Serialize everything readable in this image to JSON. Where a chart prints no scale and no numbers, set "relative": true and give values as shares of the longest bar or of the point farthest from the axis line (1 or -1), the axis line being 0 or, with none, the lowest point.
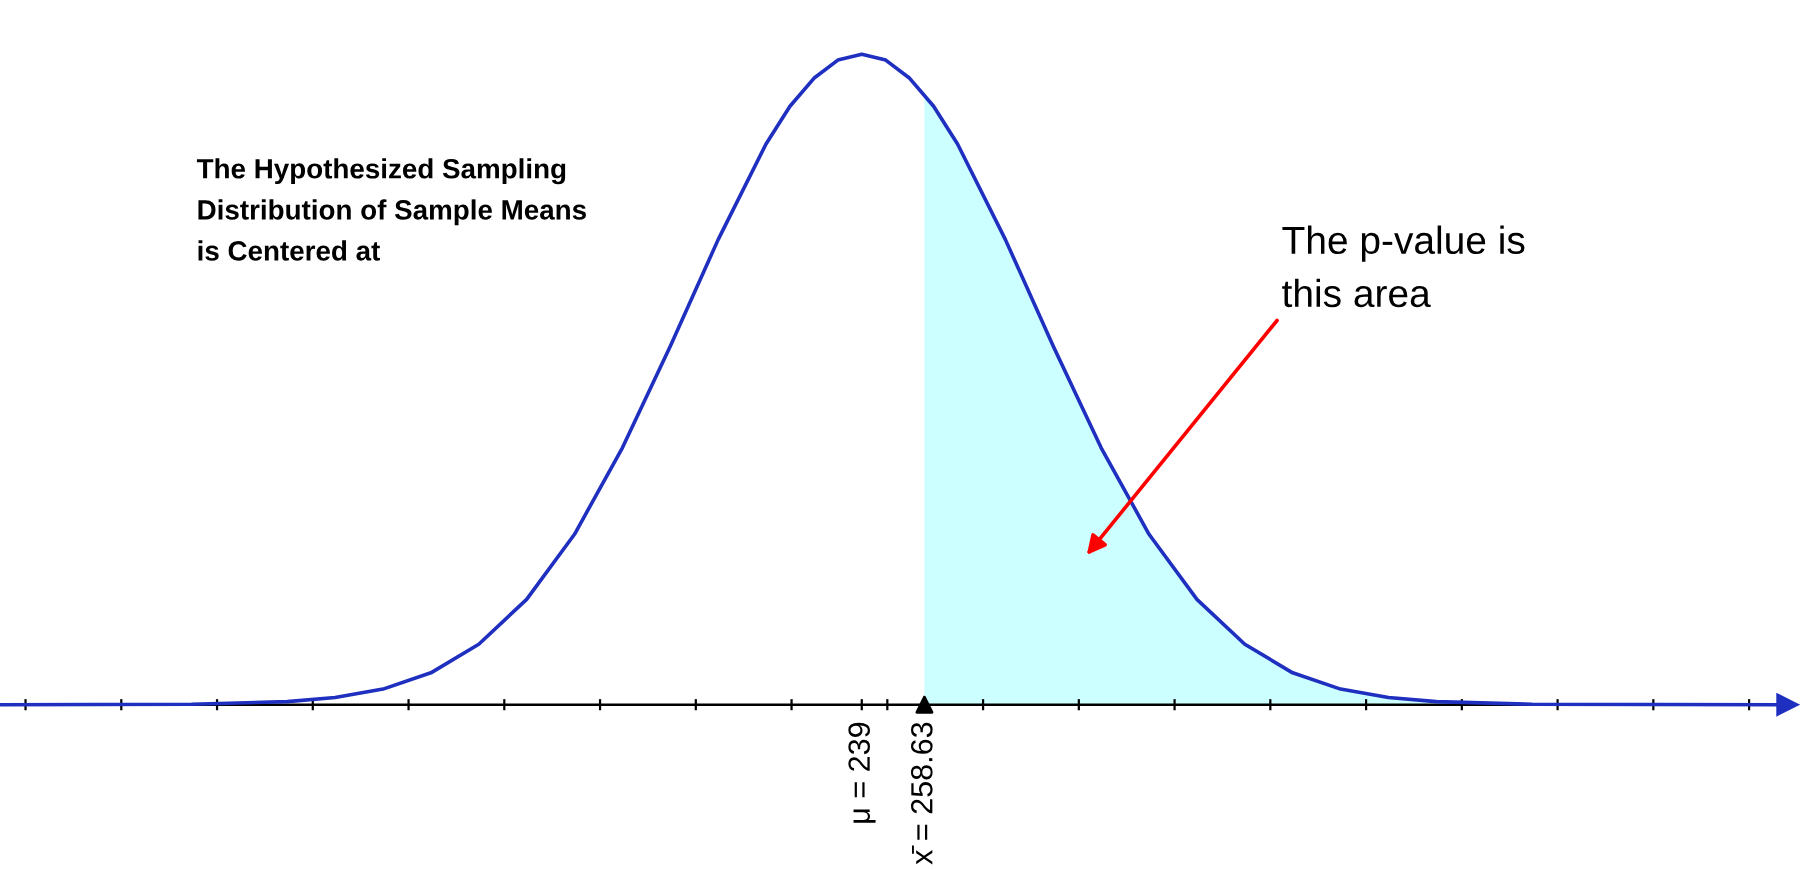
{
  "chart_data": {
    "type": "line",
    "relative": true,
    "legend": false,
    "grid": false,
    "marker": "none",
    "line_style": "solid",
    "xlim": [
      -31,
      529
    ],
    "xticks": [
      {
        "value": -23,
        "label": null
      },
      {
        "value": 7,
        "label": null
      },
      {
        "value": 37,
        "label": null
      },
      {
        "value": 67,
        "label": null
      },
      {
        "value": 97,
        "label": null
      },
      {
        "value": 127,
        "label": null
      },
      {
        "value": 157,
        "label": null
      },
      {
        "value": 187,
        "label": null
      },
      {
        "value": 217,
        "label": null
      },
      {
        "value": 239,
        "label": "μ = 239"
      },
      {
        "value": 247,
        "label": null
      },
      {
        "value": 258.63,
        "label": "x̄ = 258.63"
      },
      {
        "value": 277,
        "label": null
      },
      {
        "value": 307,
        "label": null
      },
      {
        "value": 337,
        "label": null
      },
      {
        "value": 367,
        "label": null
      },
      {
        "value": 397,
        "label": null
      },
      {
        "value": 427,
        "label": null
      },
      {
        "value": 457,
        "label": null
      },
      {
        "value": 487,
        "label": null
      },
      {
        "value": 517,
        "label": null
      }
    ],
    "series": [
      {
        "type": "area",
        "color": "#ccffff",
        "x": [
          258.63,
          269,
          284,
          299,
          314,
          329,
          344,
          359,
          374,
          389,
          404,
          419,
          449,
          529
        ],
        "values": [
          0.938,
          0.862,
          0.715,
          0.551,
          0.395,
          0.262,
          0.162,
          0.093,
          0.049,
          0.024,
          0.011,
          0.0047,
          0.0007,
          0
        ]
      },
      {
        "color": "#1f2fbf",
        "x": [
          -31,
          29,
          59,
          74,
          89,
          104,
          119,
          134,
          149,
          164,
          179,
          194,
          209,
          216.5,
          224,
          231.5,
          239,
          246.5,
          254,
          261.5,
          269,
          284,
          299,
          314,
          329,
          344,
          359,
          374,
          389,
          404,
          419,
          449,
          529
        ],
        "values": [
          0,
          0.0007,
          0.0047,
          0.011,
          0.024,
          0.049,
          0.093,
          0.162,
          0.262,
          0.395,
          0.551,
          0.715,
          0.862,
          0.92,
          0.963,
          0.991,
          1,
          0.991,
          0.963,
          0.92,
          0.862,
          0.715,
          0.551,
          0.395,
          0.262,
          0.162,
          0.093,
          0.049,
          0.024,
          0.011,
          0.0047,
          0.0007,
          0
        ]
      },
      {
        "type": "scatter",
        "color": "#000000",
        "marker": "triangle",
        "x": [
          258.63
        ],
        "values": [
          0
        ]
      }
    ],
    "annotations": [
      "The Hypothesized Sampling\nDistribution of Sample Means\nis Centered at",
      "The p-value is\nthis area"
    ]
  }
}
